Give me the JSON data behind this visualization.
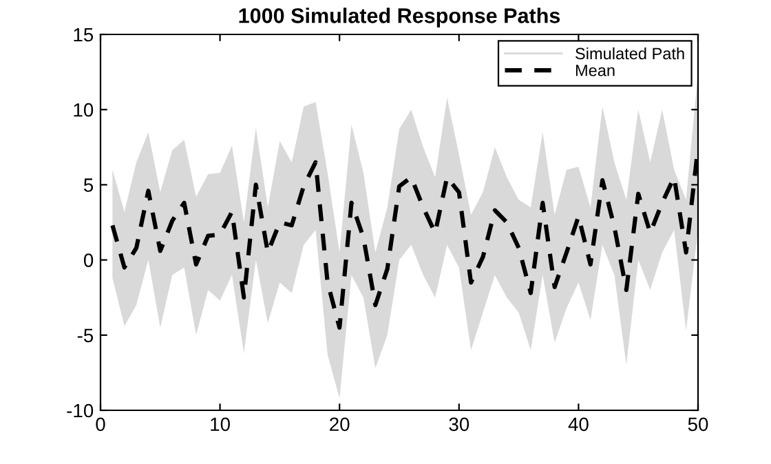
{
  "chart_data": {
    "type": "line",
    "title": "1000 Simulated Response Paths",
    "x": [
      1,
      2,
      3,
      4,
      5,
      6,
      7,
      8,
      9,
      10,
      11,
      12,
      13,
      14,
      15,
      16,
      17,
      18,
      19,
      20,
      21,
      22,
      23,
      24,
      25,
      26,
      27,
      28,
      29,
      30,
      31,
      32,
      33,
      34,
      35,
      36,
      37,
      38,
      39,
      40,
      41,
      42,
      43,
      44,
      45,
      46,
      47,
      48,
      49,
      50
    ],
    "series": [
      {
        "name": "Simulated Path",
        "color": "#d9d9d9",
        "line_style": "solid",
        "values": [
          null,
          null,
          null,
          null,
          null,
          null,
          null,
          null,
          null,
          null,
          null,
          null,
          null,
          null,
          null,
          null,
          null,
          null,
          null,
          null,
          null,
          null,
          null,
          null,
          null,
          null,
          null,
          null,
          null,
          null,
          null,
          null,
          null,
          null,
          null,
          null,
          null,
          null,
          null,
          null,
          null,
          null,
          null,
          null,
          null,
          null,
          null,
          null,
          null,
          null
        ],
        "lower": [
          -1.2,
          -4.4,
          -3,
          0,
          -4.5,
          -1,
          -0.5,
          -5,
          -2,
          -2.7,
          -1,
          -6.2,
          0,
          -4.2,
          -1.5,
          -2.2,
          1,
          2,
          -6.3,
          -9.2,
          -1,
          -2.5,
          -7.2,
          -5,
          0,
          1,
          -1,
          -2.5,
          1,
          -0.5,
          -6,
          -3.5,
          -1,
          -2.5,
          -3.5,
          -6,
          -1,
          -5.5,
          -3.2,
          -1.5,
          -4,
          1,
          -1,
          -7,
          0,
          -2,
          0.5,
          2,
          -4.7,
          2
        ],
        "upper": [
          6,
          3.2,
          6.5,
          8.5,
          4.5,
          7.3,
          8,
          4.2,
          5.7,
          5.8,
          7.6,
          2.5,
          8.8,
          3.5,
          7.9,
          6.5,
          10.2,
          10.5,
          5.8,
          0.5,
          9,
          5.8,
          0.5,
          3.5,
          8.7,
          10,
          7.5,
          5.5,
          10.8,
          7,
          3,
          4.5,
          7.5,
          5.5,
          4,
          3.5,
          8.5,
          3,
          6,
          6.2,
          3.5,
          10.2,
          6.5,
          4,
          10,
          6.5,
          10,
          6,
          4,
          12.5
        ]
      },
      {
        "name": "Mean",
        "type": "line",
        "color": "#000000",
        "line_style": "dashed",
        "values": [
          2.3,
          -0.5,
          0.8,
          4.6,
          0.6,
          2.6,
          3.8,
          -0.3,
          1.6,
          1.7,
          3.2,
          -2.5,
          5,
          0.5,
          2.5,
          2.3,
          4.9,
          6.5,
          -1.5,
          -4.5,
          3.8,
          1.5,
          -3,
          -0.6,
          4.9,
          5.5,
          3.5,
          1.8,
          5.5,
          4.5,
          -1.5,
          0.2,
          3.3,
          2.5,
          0.8,
          -2.2,
          3.8,
          -1.8,
          0.5,
          2.9,
          -0.3,
          5.3,
          2.2,
          -2,
          4.4,
          1.8,
          3.8,
          5.5,
          0.5,
          7.5
        ]
      }
    ],
    "xlim": [
      0,
      50
    ],
    "xticks": [
      0,
      10,
      20,
      30,
      40,
      50
    ],
    "ylim": [
      -10,
      15
    ],
    "yticks": [
      -10,
      -5,
      0,
      5,
      10,
      15
    ],
    "grid": false,
    "legend": "top right",
    "marker": "none"
  }
}
